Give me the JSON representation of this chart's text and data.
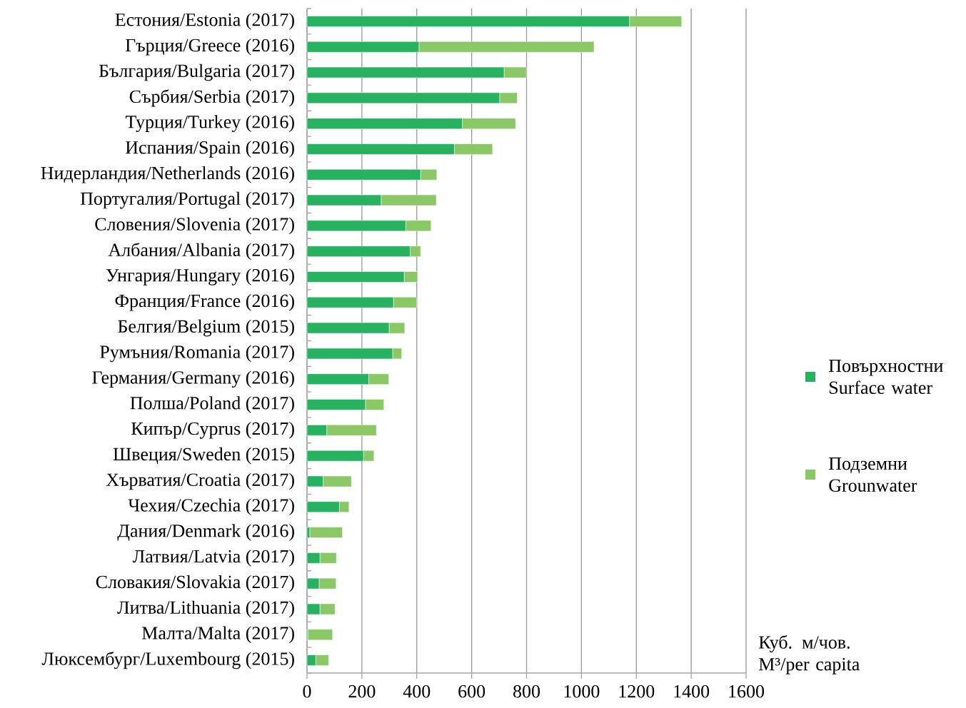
{
  "chart_data": {
    "type": "bar",
    "orientation": "horizontal",
    "stacked": true,
    "categories": [
      "Естония/Estonia (2017)",
      "Гърция/Greece (2016)",
      "България/Bulgaria (2017)",
      "Сърбия/Serbia (2017)",
      "Турция/Turkey (2016)",
      "Испания/Spain (2016)",
      "Нидерландия/Netherlands (2016)",
      "Португалия/Portugal (2017)",
      "Словения/Slovenia (2017)",
      "Албания/Albania (2017)",
      "Унгария/Hungary (2016)",
      "Франция/France (2016)",
      "Белгия/Belgium (2015)",
      "Румъния/Romania (2017)",
      "Германия/Germany (2016)",
      "Полша/Poland (2017)",
      "Кипър/Cyprus (2017)",
      "Швеция/Sweden (2015)",
      "Хърватия/Croatia (2017)",
      "Чехия/Czechia (2017)",
      "Дания/Denmark (2016)",
      "Латвия/Latvia (2017)",
      "Словакия/Slovakia (2017)",
      "Литва/Lithuania (2017)",
      "Малта/Malta (2017)",
      "Люксембург/Luxembourg (2015)"
    ],
    "series": [
      {
        "name": "Повърхностни Surface water",
        "color": "#27b262",
        "values": [
          1175,
          408,
          718,
          702,
          566,
          537,
          414,
          270,
          360,
          376,
          354,
          315,
          299,
          312,
          225,
          213,
          72,
          206,
          59,
          118,
          10,
          47,
          44,
          47,
          3,
          32
        ]
      },
      {
        "name": "Подземни Grounwater",
        "color": "#8ac765",
        "values": [
          190,
          638,
          81,
          64,
          194,
          139,
          59,
          201,
          92,
          38,
          49,
          84,
          57,
          33,
          73,
          67,
          181,
          38,
          103,
          35,
          119,
          60,
          62,
          55,
          90,
          47
        ]
      }
    ],
    "xlabel": "Куб. м/чов. M³/per capita",
    "xlim": [
      0,
      1600
    ],
    "xticks": [
      0,
      200,
      400,
      600,
      800,
      1000,
      1200,
      1400,
      1600
    ],
    "grid": "x",
    "legend": "right"
  }
}
